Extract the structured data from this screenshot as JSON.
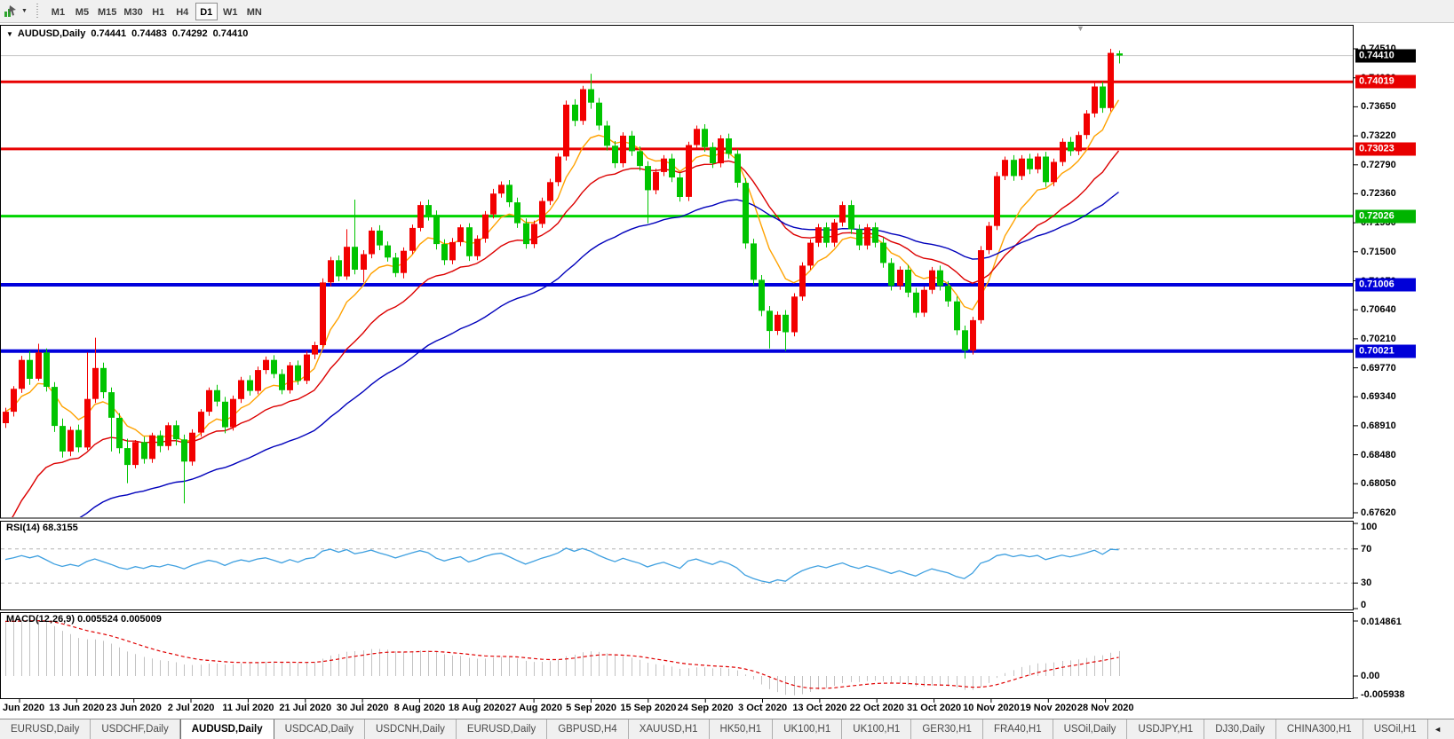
{
  "toolbar": {
    "periods": [
      "M1",
      "M5",
      "M15",
      "M30",
      "H1",
      "H4",
      "D1",
      "W1",
      "MN"
    ],
    "active_period": "D1"
  },
  "chart_header": {
    "symbol_title": "AUDUSD,Daily",
    "open": "0.74441",
    "high": "0.74483",
    "low": "0.74292",
    "close": "0.74410"
  },
  "price_axis": {
    "ticks": [
      "0.74510",
      "0.74080",
      "0.73650",
      "0.73220",
      "0.72790",
      "0.72360",
      "0.71930",
      "0.71500",
      "0.71070",
      "0.70640",
      "0.70210",
      "0.69770",
      "0.69340",
      "0.68910",
      "0.68480",
      "0.68050",
      "0.67620"
    ],
    "badges": [
      {
        "value": "0.74410",
        "price": 0.7441,
        "bg": "#000000",
        "role": "current-price"
      },
      {
        "value": "0.74019",
        "price": 0.74019,
        "bg": "#e80000",
        "role": "resistance-line"
      },
      {
        "value": "0.73023",
        "price": 0.73023,
        "bg": "#e80000",
        "role": "resistance-line"
      },
      {
        "value": "0.72026",
        "price": 0.72026,
        "bg": "#00b400",
        "role": "support-line"
      },
      {
        "value": "0.71006",
        "price": 0.71006,
        "bg": "#0000d8",
        "role": "support-line"
      },
      {
        "value": "0.70021",
        "price": 0.70021,
        "bg": "#0000d8",
        "role": "support-line"
      }
    ]
  },
  "time_axis": {
    "labels": [
      "4 Jun 2020",
      "13 Jun 2020",
      "23 Jun 2020",
      "2 Jul 2020",
      "11 Jul 2020",
      "21 Jul 2020",
      "30 Jul 2020",
      "8 Aug 2020",
      "18 Aug 2020",
      "27 Aug 2020",
      "5 Sep 2020",
      "15 Sep 2020",
      "24 Sep 2020",
      "3 Oct 2020",
      "13 Oct 2020",
      "22 Oct 2020",
      "31 Oct 2020",
      "10 Nov 2020",
      "19 Nov 2020",
      "28 Nov 2020"
    ]
  },
  "rsi_panel": {
    "label": "RSI(14) 68.3155",
    "indicator": "RSI",
    "period": 14,
    "value": 68.3155,
    "ticks": [
      {
        "text": "100",
        "v": 100
      },
      {
        "text": "70",
        "v": 70
      },
      {
        "text": "30",
        "v": 30
      },
      {
        "text": "0",
        "v": 0
      }
    ],
    "dashed_levels": [
      70,
      30
    ]
  },
  "macd_panel": {
    "label": "MACD(12,26,9) 0.005524 0.005009",
    "macd_value": 0.005524,
    "signal_value": 0.005009,
    "ticks": [
      {
        "text": "0.014861",
        "v": 0.014861
      },
      {
        "text": "0.00",
        "v": 0
      },
      {
        "text": "-0.005938",
        "v": -0.005938
      }
    ]
  },
  "tabs": {
    "items": [
      "EURUSD,Daily",
      "USDCHF,Daily",
      "AUDUSD,Daily",
      "USDCAD,Daily",
      "USDCNH,Daily",
      "EURUSD,Daily",
      "GBPUSD,H4",
      "XAUUSD,H1",
      "HK50,H1",
      "UK100,H1",
      "UK100,H1",
      "GER30,H1",
      "FRA40,H1",
      "USOil,Daily",
      "USDJPY,H1",
      "DJ30,Daily",
      "CHINA300,H1",
      "USOil,H1"
    ],
    "active_index": 2,
    "scroll_left": "◄",
    "scroll_right": "►"
  },
  "colors": {
    "bull": "#f20000",
    "bear": "#00c400",
    "ma_fast": "#ffa200",
    "ma_mid": "#dc0000",
    "ma_slow": "#0000bb",
    "level_red": "#e80000",
    "level_green": "#00d400",
    "level_blue": "#0000dc",
    "rsi_line": "#3fa0e0",
    "rsi_dash": "#b4b4b4",
    "macd_hist": "#c2c2c2",
    "macd_signal": "#e00000",
    "price_line": "#c4c4c4"
  },
  "chart_data": {
    "type": "candlestick",
    "symbol": "AUDUSD",
    "timeframe": "Daily",
    "title": "AUDUSD,Daily  0.74441 0.74483 0.74292 0.74410",
    "color_convention": "red = up candle, green = down candle",
    "y_axis": {
      "min": 0.6762,
      "max": 0.7451
    },
    "x_tick_labels": [
      "4 Jun 2020",
      "13 Jun 2020",
      "23 Jun 2020",
      "2 Jul 2020",
      "11 Jul 2020",
      "21 Jul 2020",
      "30 Jul 2020",
      "8 Aug 2020",
      "18 Aug 2020",
      "27 Aug 2020",
      "5 Sep 2020",
      "15 Sep 2020",
      "24 Sep 2020",
      "3 Oct 2020",
      "13 Oct 2020",
      "22 Oct 2020",
      "31 Oct 2020",
      "10 Nov 2020",
      "19 Nov 2020",
      "28 Nov 2020"
    ],
    "current_price": 0.7441,
    "horizontal_levels": [
      {
        "price": 0.74019,
        "color": "#e80000",
        "width": 3
      },
      {
        "price": 0.73023,
        "color": "#e80000",
        "width": 3
      },
      {
        "price": 0.72026,
        "color": "#00d400",
        "width": 3
      },
      {
        "price": 0.71006,
        "color": "#0000dc",
        "width": 4
      },
      {
        "price": 0.70021,
        "color": "#0000dc",
        "width": 4
      }
    ],
    "moving_averages": [
      {
        "name": "fast",
        "color": "#ffa200",
        "period": 8,
        "seed": null
      },
      {
        "name": "medium",
        "color": "#dc0000",
        "period": 20,
        "seed": 0.672
      },
      {
        "name": "slow",
        "color": "#0000bb",
        "period": 45,
        "seed": 0.666
      }
    ],
    "rsi": {
      "period": 14,
      "current": 68.3155,
      "levels": [
        70,
        30
      ],
      "range": [
        0,
        100
      ]
    },
    "macd": {
      "fast": 12,
      "slow": 26,
      "signal": 9,
      "current_macd": 0.005524,
      "current_signal": 0.005009,
      "scale_max": 0.014861,
      "scale_min": -0.005938
    },
    "candles_ohlc": [
      [
        0.6895,
        0.6918,
        0.6888,
        0.6912
      ],
      [
        0.6912,
        0.695,
        0.6905,
        0.6946
      ],
      [
        0.6946,
        0.6995,
        0.694,
        0.6989
      ],
      [
        0.6989,
        0.7002,
        0.6952,
        0.6961
      ],
      [
        0.6961,
        0.7013,
        0.6958,
        0.7
      ],
      [
        0.7,
        0.7006,
        0.6942,
        0.6949
      ],
      [
        0.6949,
        0.6956,
        0.6882,
        0.6891
      ],
      [
        0.6891,
        0.6902,
        0.6844,
        0.6853
      ],
      [
        0.6853,
        0.689,
        0.6846,
        0.6885
      ],
      [
        0.6885,
        0.6893,
        0.6852,
        0.6859
      ],
      [
        0.6859,
        0.7,
        0.6855,
        0.6931
      ],
      [
        0.6931,
        0.7022,
        0.6925,
        0.6977
      ],
      [
        0.6977,
        0.6985,
        0.6932,
        0.6941
      ],
      [
        0.6941,
        0.6948,
        0.6853,
        0.6903
      ],
      [
        0.6903,
        0.691,
        0.685,
        0.6858
      ],
      [
        0.6858,
        0.6872,
        0.6806,
        0.6833
      ],
      [
        0.6833,
        0.687,
        0.6828,
        0.6867
      ],
      [
        0.6867,
        0.6875,
        0.6835,
        0.6842
      ],
      [
        0.6842,
        0.6881,
        0.6836,
        0.6877
      ],
      [
        0.6877,
        0.6884,
        0.6852,
        0.6861
      ],
      [
        0.6861,
        0.6896,
        0.6855,
        0.6892
      ],
      [
        0.6892,
        0.6899,
        0.6862,
        0.6871
      ],
      [
        0.6871,
        0.6878,
        0.6776,
        0.6838
      ],
      [
        0.6838,
        0.6886,
        0.6832,
        0.6881
      ],
      [
        0.6881,
        0.6916,
        0.6875,
        0.6912
      ],
      [
        0.6912,
        0.6948,
        0.6906,
        0.6944
      ],
      [
        0.6944,
        0.6952,
        0.692,
        0.6927
      ],
      [
        0.6927,
        0.6934,
        0.688,
        0.6889
      ],
      [
        0.6889,
        0.6936,
        0.6884,
        0.6931
      ],
      [
        0.6931,
        0.6964,
        0.6925,
        0.6959
      ],
      [
        0.6959,
        0.6966,
        0.6936,
        0.6943
      ],
      [
        0.6943,
        0.6979,
        0.6938,
        0.6974
      ],
      [
        0.6974,
        0.6994,
        0.6968,
        0.6989
      ],
      [
        0.6989,
        0.6996,
        0.6962,
        0.6968
      ],
      [
        0.6968,
        0.6975,
        0.6938,
        0.6944
      ],
      [
        0.6944,
        0.6986,
        0.6939,
        0.6981
      ],
      [
        0.6981,
        0.6988,
        0.6952,
        0.6958
      ],
      [
        0.6958,
        0.7002,
        0.6953,
        0.6997
      ],
      [
        0.6997,
        0.7016,
        0.699,
        0.7011
      ],
      [
        0.7011,
        0.711,
        0.7006,
        0.7104
      ],
      [
        0.7104,
        0.7142,
        0.7098,
        0.7137
      ],
      [
        0.7137,
        0.7144,
        0.7106,
        0.7113
      ],
      [
        0.7113,
        0.7183,
        0.7108,
        0.7157
      ],
      [
        0.7157,
        0.7227,
        0.7116,
        0.7123
      ],
      [
        0.7123,
        0.7152,
        0.7104,
        0.7146
      ],
      [
        0.7146,
        0.7186,
        0.714,
        0.7181
      ],
      [
        0.7181,
        0.7189,
        0.7152,
        0.7159
      ],
      [
        0.7159,
        0.7165,
        0.7135,
        0.7141
      ],
      [
        0.7141,
        0.7148,
        0.7112,
        0.7118
      ],
      [
        0.7118,
        0.7156,
        0.711,
        0.7151
      ],
      [
        0.7151,
        0.719,
        0.7146,
        0.7185
      ],
      [
        0.7185,
        0.7224,
        0.718,
        0.7219
      ],
      [
        0.7219,
        0.7227,
        0.7196,
        0.7204
      ],
      [
        0.7204,
        0.7211,
        0.7153,
        0.7161
      ],
      [
        0.7161,
        0.7168,
        0.713,
        0.7137
      ],
      [
        0.7137,
        0.717,
        0.7131,
        0.7164
      ],
      [
        0.7164,
        0.719,
        0.7158,
        0.7186
      ],
      [
        0.7186,
        0.7192,
        0.7136,
        0.7143
      ],
      [
        0.7143,
        0.7174,
        0.7137,
        0.7169
      ],
      [
        0.7169,
        0.721,
        0.7163,
        0.7205
      ],
      [
        0.7205,
        0.7243,
        0.7199,
        0.7236
      ],
      [
        0.7236,
        0.7254,
        0.723,
        0.7249
      ],
      [
        0.7249,
        0.7256,
        0.7216,
        0.7223
      ],
      [
        0.7223,
        0.723,
        0.7185,
        0.7192
      ],
      [
        0.7192,
        0.7199,
        0.7154,
        0.7161
      ],
      [
        0.7161,
        0.7196,
        0.7155,
        0.7191
      ],
      [
        0.7191,
        0.723,
        0.7185,
        0.7225
      ],
      [
        0.7225,
        0.7258,
        0.7219,
        0.7253
      ],
      [
        0.7253,
        0.7296,
        0.7247,
        0.7291
      ],
      [
        0.7291,
        0.7374,
        0.7285,
        0.7368
      ],
      [
        0.7368,
        0.7376,
        0.7336,
        0.7344
      ],
      [
        0.7344,
        0.7396,
        0.7338,
        0.7391
      ],
      [
        0.7391,
        0.7414,
        0.7362,
        0.7371
      ],
      [
        0.7371,
        0.7378,
        0.733,
        0.7337
      ],
      [
        0.7337,
        0.7344,
        0.73,
        0.7307
      ],
      [
        0.7307,
        0.7314,
        0.7274,
        0.7281
      ],
      [
        0.7281,
        0.7327,
        0.7275,
        0.7322
      ],
      [
        0.7322,
        0.7329,
        0.7292,
        0.7299
      ],
      [
        0.7299,
        0.7306,
        0.727,
        0.7277
      ],
      [
        0.7277,
        0.7284,
        0.7192,
        0.7241
      ],
      [
        0.7241,
        0.7273,
        0.7235,
        0.7268
      ],
      [
        0.7268,
        0.7293,
        0.7262,
        0.7288
      ],
      [
        0.7288,
        0.7295,
        0.7253,
        0.726
      ],
      [
        0.726,
        0.7267,
        0.7224,
        0.7231
      ],
      [
        0.7231,
        0.7313,
        0.7225,
        0.7308
      ],
      [
        0.7308,
        0.7337,
        0.7302,
        0.7332
      ],
      [
        0.7332,
        0.7339,
        0.7298,
        0.7305
      ],
      [
        0.7305,
        0.7312,
        0.7274,
        0.7281
      ],
      [
        0.7281,
        0.7323,
        0.7275,
        0.7318
      ],
      [
        0.7318,
        0.7325,
        0.7288,
        0.7295
      ],
      [
        0.7295,
        0.7302,
        0.7245,
        0.7252
      ],
      [
        0.7252,
        0.7259,
        0.7154,
        0.7162
      ],
      [
        0.7162,
        0.7169,
        0.71,
        0.7108
      ],
      [
        0.7108,
        0.7115,
        0.7054,
        0.7062
      ],
      [
        0.7062,
        0.7069,
        0.7006,
        0.7032
      ],
      [
        0.7032,
        0.7061,
        0.7026,
        0.7056
      ],
      [
        0.7056,
        0.7063,
        0.7002,
        0.703
      ],
      [
        0.703,
        0.7088,
        0.7024,
        0.7083
      ],
      [
        0.7083,
        0.7134,
        0.7077,
        0.7129
      ],
      [
        0.7129,
        0.7168,
        0.7123,
        0.7163
      ],
      [
        0.7163,
        0.7191,
        0.7157,
        0.7186
      ],
      [
        0.7186,
        0.7193,
        0.7156,
        0.7163
      ],
      [
        0.7163,
        0.7198,
        0.7157,
        0.7193
      ],
      [
        0.7193,
        0.7224,
        0.7187,
        0.7219
      ],
      [
        0.7219,
        0.7226,
        0.7176,
        0.7183
      ],
      [
        0.7183,
        0.719,
        0.7152,
        0.7159
      ],
      [
        0.7159,
        0.7191,
        0.7153,
        0.7186
      ],
      [
        0.7186,
        0.7193,
        0.7156,
        0.7163
      ],
      [
        0.7163,
        0.717,
        0.7126,
        0.7133
      ],
      [
        0.7133,
        0.714,
        0.7092,
        0.7099
      ],
      [
        0.7099,
        0.7128,
        0.7093,
        0.7123
      ],
      [
        0.7123,
        0.713,
        0.7082,
        0.7089
      ],
      [
        0.7089,
        0.7096,
        0.7052,
        0.7059
      ],
      [
        0.7059,
        0.7098,
        0.7053,
        0.7093
      ],
      [
        0.7093,
        0.7127,
        0.7087,
        0.7122
      ],
      [
        0.7122,
        0.7129,
        0.7092,
        0.7099
      ],
      [
        0.7099,
        0.7106,
        0.7068,
        0.7076
      ],
      [
        0.7076,
        0.7083,
        0.7026,
        0.7033
      ],
      [
        0.7033,
        0.704,
        0.6991,
        0.7003
      ],
      [
        0.7003,
        0.7053,
        0.6997,
        0.7048
      ],
      [
        0.7048,
        0.7158,
        0.7043,
        0.7152
      ],
      [
        0.7152,
        0.7194,
        0.7146,
        0.7188
      ],
      [
        0.7188,
        0.7268,
        0.7182,
        0.7262
      ],
      [
        0.7262,
        0.7291,
        0.7256,
        0.7286
      ],
      [
        0.7286,
        0.7293,
        0.7255,
        0.7262
      ],
      [
        0.7262,
        0.7293,
        0.7256,
        0.7288
      ],
      [
        0.7288,
        0.7295,
        0.7265,
        0.7272
      ],
      [
        0.7272,
        0.7296,
        0.7266,
        0.7291
      ],
      [
        0.7291,
        0.7298,
        0.7246,
        0.7253
      ],
      [
        0.7253,
        0.7288,
        0.7247,
        0.7283
      ],
      [
        0.7283,
        0.7318,
        0.7277,
        0.7313
      ],
      [
        0.7313,
        0.732,
        0.7292,
        0.7299
      ],
      [
        0.7299,
        0.7328,
        0.7293,
        0.7323
      ],
      [
        0.7323,
        0.736,
        0.7317,
        0.7355
      ],
      [
        0.7355,
        0.7401,
        0.7349,
        0.7395
      ],
      [
        0.7395,
        0.7402,
        0.7356,
        0.7363
      ],
      [
        0.7363,
        0.7451,
        0.7358,
        0.7445
      ],
      [
        0.74441,
        0.74483,
        0.74292,
        0.7441
      ]
    ]
  }
}
